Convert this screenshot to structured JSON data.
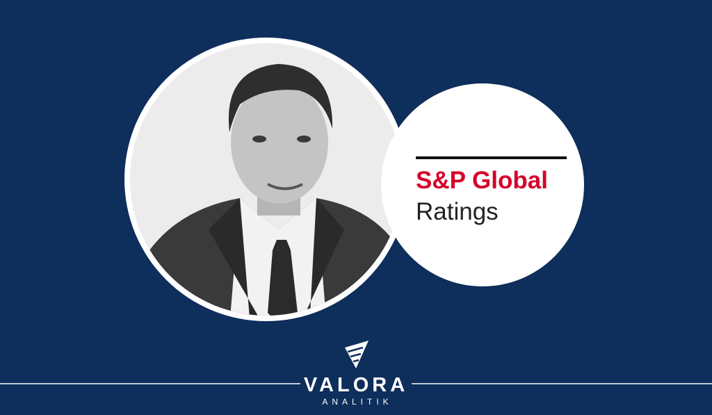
{
  "logo": {
    "line1": "S&P Global",
    "line2": "Ratings"
  },
  "brand": {
    "name": "VALORA",
    "tagline": "ANALITIK"
  }
}
